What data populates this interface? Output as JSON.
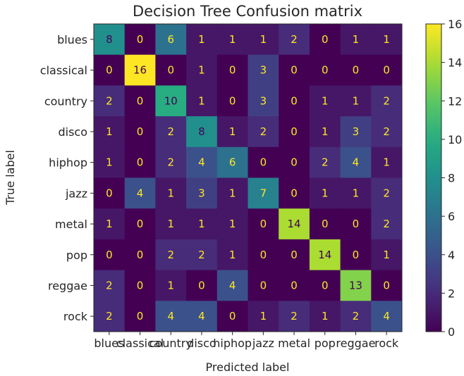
{
  "chart_data": {
    "type": "heatmap",
    "title": "Decision Tree Confusion matrix",
    "xlabel": "Predicted label",
    "ylabel": "True label",
    "categories": [
      "blues",
      "classical",
      "country",
      "disco",
      "hiphop",
      "jazz",
      "metal",
      "pop",
      "reggae",
      "rock"
    ],
    "matrix": [
      [
        8,
        0,
        6,
        1,
        1,
        1,
        2,
        0,
        1,
        1
      ],
      [
        0,
        16,
        0,
        1,
        0,
        3,
        0,
        0,
        0,
        0
      ],
      [
        2,
        0,
        10,
        1,
        0,
        3,
        0,
        1,
        1,
        2
      ],
      [
        1,
        0,
        2,
        8,
        1,
        2,
        0,
        1,
        3,
        2
      ],
      [
        1,
        0,
        2,
        4,
        6,
        0,
        0,
        2,
        4,
        1
      ],
      [
        0,
        4,
        1,
        3,
        1,
        7,
        0,
        1,
        1,
        2
      ],
      [
        1,
        0,
        1,
        1,
        1,
        0,
        14,
        0,
        0,
        2
      ],
      [
        0,
        0,
        2,
        2,
        1,
        0,
        0,
        14,
        0,
        1
      ],
      [
        2,
        0,
        1,
        0,
        4,
        0,
        0,
        0,
        13,
        0
      ],
      [
        2,
        0,
        4,
        4,
        0,
        1,
        2,
        1,
        2,
        4
      ]
    ],
    "colormap": "viridis",
    "vmin": 0,
    "vmax": 16,
    "colorbar_ticks": [
      "0",
      "2",
      "4",
      "6",
      "8",
      "10",
      "12",
      "14",
      "16"
    ],
    "text_color_dark": "#440154",
    "text_color_light": "#fde725"
  }
}
